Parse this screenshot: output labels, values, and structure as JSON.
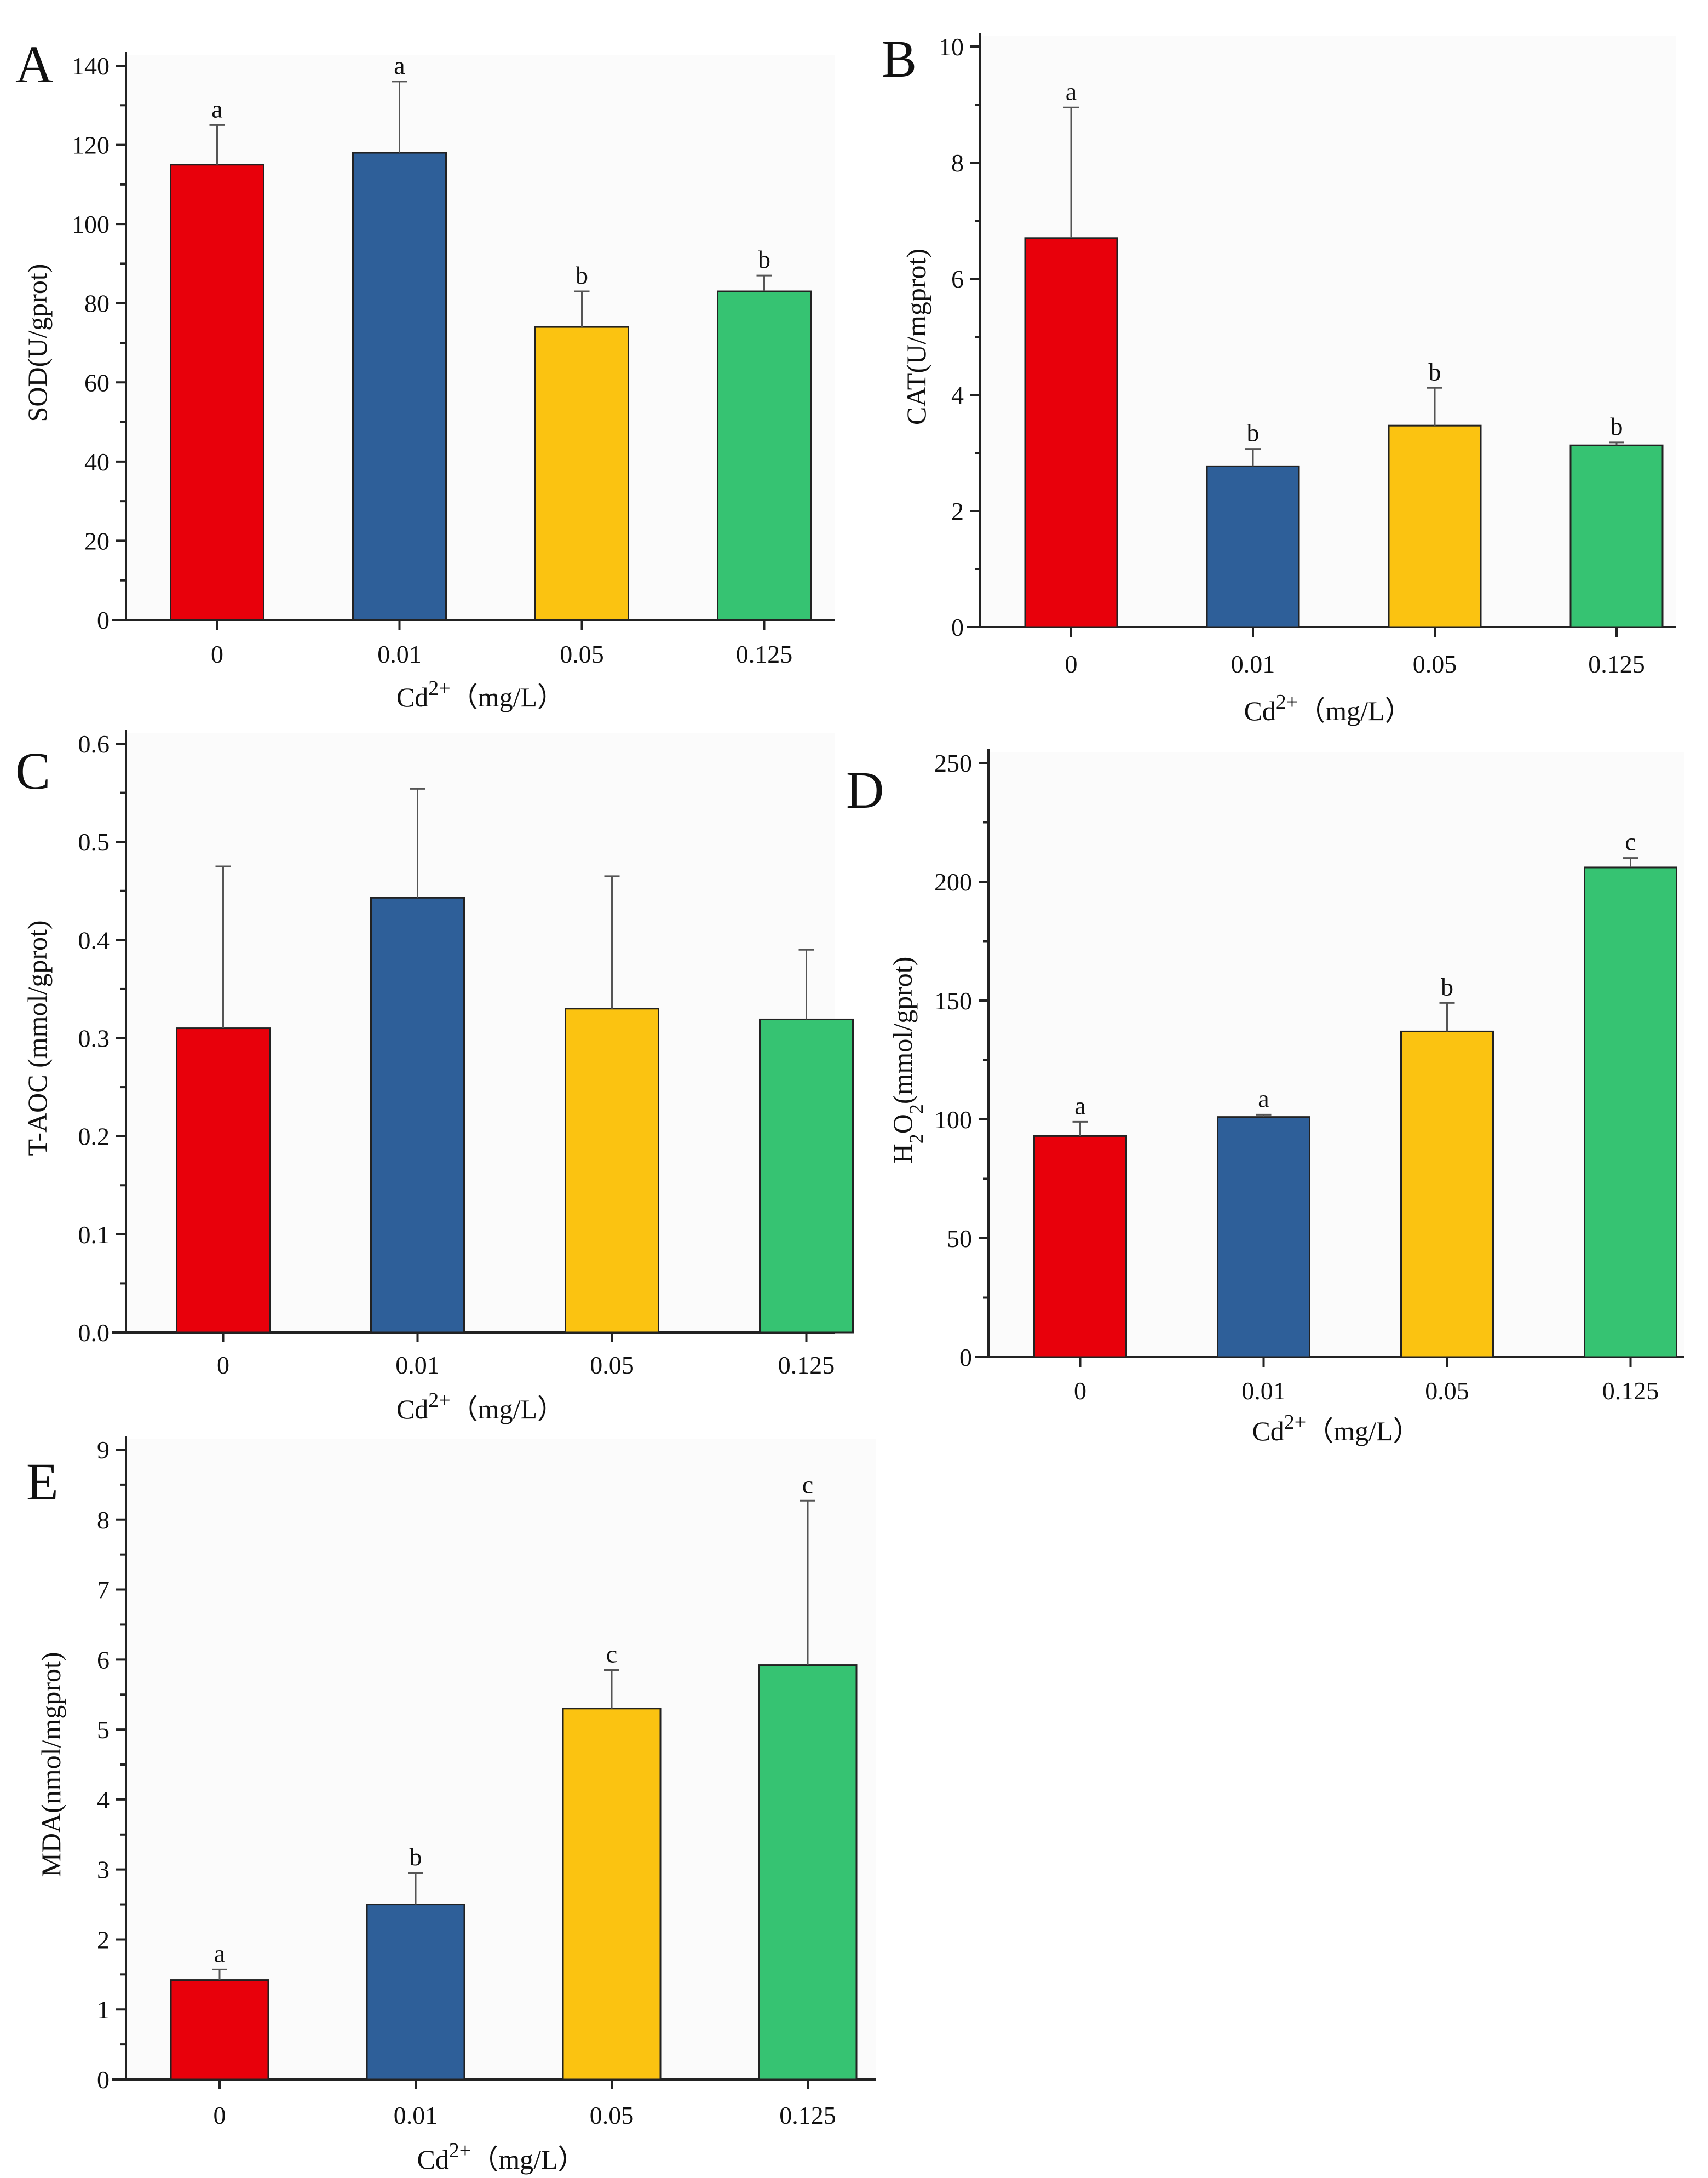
{
  "figure": {
    "x_axis_title_main": "Cd",
    "x_axis_title_sup": "2+",
    "x_axis_title_unit": "（mg/L）",
    "colors": [
      "#e8000b",
      "#2e5f99",
      "#fbc311",
      "#36c372"
    ]
  },
  "chart_data": [
    {
      "type": "bar",
      "panel_label": "A",
      "categories": [
        "0",
        "0.01",
        "0.05",
        "0.125"
      ],
      "values": [
        115,
        118,
        74,
        83
      ],
      "errors": [
        10,
        18,
        9,
        4
      ],
      "significance": [
        "a",
        "a",
        "b",
        "b"
      ],
      "ylabel": "SOD(U/gprot)",
      "ylim": [
        0,
        140
      ],
      "yticks": [
        "0",
        "20",
        "40",
        "60",
        "80",
        "100",
        "120",
        "140"
      ],
      "xlabel": "Cd2+（mg/L）"
    },
    {
      "type": "bar",
      "panel_label": "B",
      "categories": [
        "0",
        "0.01",
        "0.05",
        "0.125"
      ],
      "values": [
        6.7,
        2.77,
        3.47,
        3.13
      ],
      "errors": [
        2.25,
        0.3,
        0.65,
        0.05
      ],
      "significance": [
        "a",
        "b",
        "b",
        "b"
      ],
      "ylabel": "CAT(U/mgprot)",
      "ylim": [
        0,
        10
      ],
      "yticks": [
        "0",
        "2",
        "4",
        "6",
        "8",
        "10"
      ],
      "xlabel": "Cd2+（mg/L）"
    },
    {
      "type": "bar",
      "panel_label": "C",
      "categories": [
        "0",
        "0.01",
        "0.05",
        "0.125"
      ],
      "values": [
        0.31,
        0.443,
        0.33,
        0.319
      ],
      "errors": [
        0.165,
        0.111,
        0.135,
        0.071
      ],
      "significance": [
        "",
        "",
        "",
        ""
      ],
      "ylabel": "T-AOC (mmol/gprot)",
      "ylim": [
        0,
        0.6
      ],
      "yticks": [
        "0.0",
        "0.1",
        "0.2",
        "0.3",
        "0.4",
        "0.5",
        "0.6"
      ],
      "xlabel": "Cd2+（mg/L）"
    },
    {
      "type": "bar",
      "panel_label": "D",
      "categories": [
        "0",
        "0.01",
        "0.05",
        "0.125"
      ],
      "values": [
        93,
        101,
        137,
        206
      ],
      "errors": [
        6,
        1,
        12,
        4
      ],
      "significance": [
        "a",
        "a",
        "b",
        "c"
      ],
      "ylabel_parts": [
        "H",
        "2",
        "O",
        "2",
        "(mmol/gprot)"
      ],
      "ylim": [
        0,
        250
      ],
      "yticks": [
        "0",
        "50",
        "100",
        "150",
        "200",
        "250"
      ],
      "xlabel": "Cd2+（mg/L）"
    },
    {
      "type": "bar",
      "panel_label": "E",
      "categories": [
        "0",
        "0.01",
        "0.05",
        "0.125"
      ],
      "values": [
        1.42,
        2.5,
        5.3,
        5.92
      ],
      "errors": [
        0.15,
        0.45,
        0.55,
        2.35
      ],
      "significance": [
        "a",
        "b",
        "c",
        "c"
      ],
      "ylabel": "MDA(nmol/mgprot)",
      "ylim": [
        0,
        9
      ],
      "yticks": [
        "0",
        "1",
        "2",
        "3",
        "4",
        "5",
        "6",
        "7",
        "8",
        "9"
      ],
      "xlabel": "Cd2+（mg/L）"
    }
  ]
}
